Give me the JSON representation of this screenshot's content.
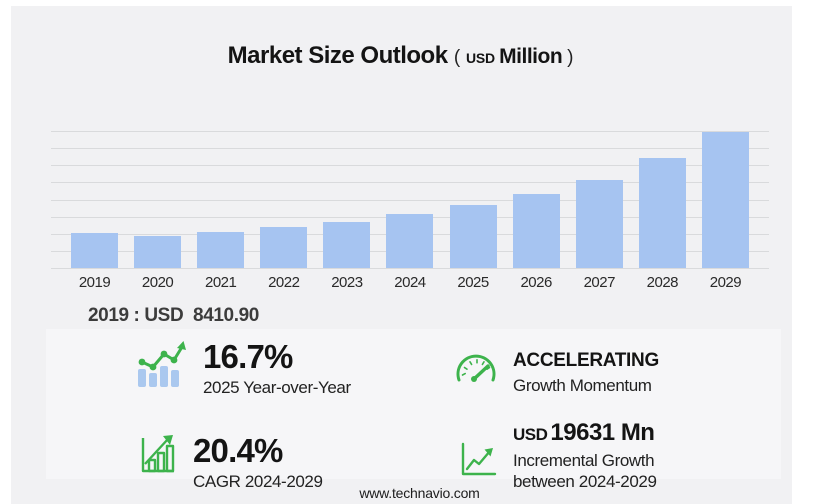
{
  "title": {
    "main": "Market Size Outlook",
    "paren_open": "(",
    "unit_small": "USD",
    "unit": "Million",
    "paren_close": ")"
  },
  "chart_data": {
    "type": "bar",
    "title": "Market Size Outlook (USD Million)",
    "ylabel": "",
    "xlabel": "",
    "unit": "USD Million",
    "categories": [
      "2019",
      "2020",
      "2021",
      "2022",
      "2023",
      "2024",
      "2025",
      "2026",
      "2027",
      "2028",
      "2029"
    ],
    "values": [
      8410.9,
      7700,
      8650,
      9800,
      11050,
      12805,
      14944,
      17600,
      21100,
      26300,
      32436
    ],
    "labeled_point": {
      "category": "2019",
      "value": 8410.9,
      "label": "2019 : USD  8410.90"
    },
    "ylim": [
      0,
      32436
    ],
    "gridlines": 9,
    "grid": true,
    "legend": false,
    "bar_color": "#a6c4f1"
  },
  "annotation": "2019 : USD  8410.90",
  "stats": [
    {
      "icon": "bar-trend-icon",
      "value": "16.7%",
      "label": "2025 Year-over-Year"
    },
    {
      "icon": "gauge-icon",
      "value": "ACCELERATING",
      "label": "Growth Momentum"
    },
    {
      "icon": "cagr-bars-icon",
      "value": "20.4%",
      "label": "CAGR 2024-2029"
    },
    {
      "icon": "line-growth-icon",
      "value_prefix": "USD",
      "value": "19631 Mn",
      "label_lines": [
        "Incremental Growth",
        "between 2024-2029"
      ]
    }
  ],
  "footer": "www.technavio.com",
  "colors": {
    "bar_blue": "#a6c4f1",
    "icon_bar_blue": "#aac8ef",
    "accent_green": "#3db34c",
    "panel_gray": "#f1f1f3",
    "stats_panel_gray": "#f6f6f8",
    "gridline": "#d9dadc",
    "text_dark": "#141414",
    "text_gray": "#3c3c3c"
  }
}
